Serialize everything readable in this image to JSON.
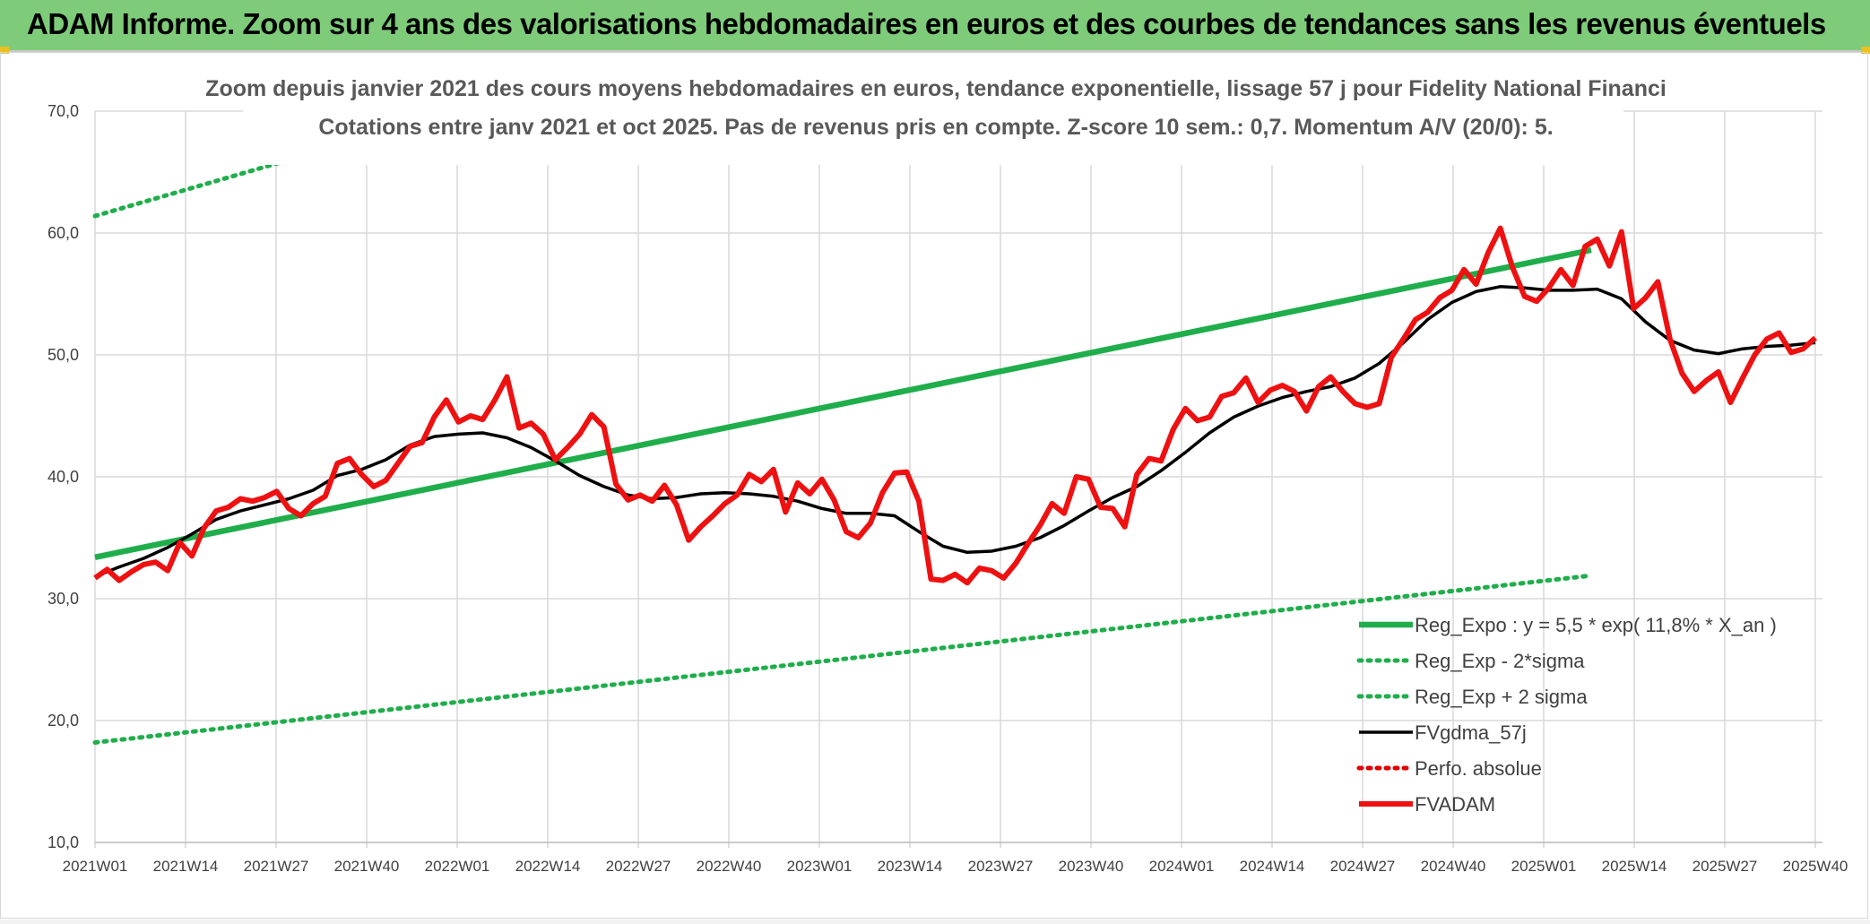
{
  "header": {
    "title": "ADAM Informe. Zoom sur 4 ans des valorisations hebdomadaires en euros et des courbes de tendances sans les revenus éventuels"
  },
  "chart_data": {
    "type": "line",
    "title_line1": "Zoom depuis janvier 2021 des cours moyens hebdomadaires en euros, tendance exponentielle, lissage 57 j pour Fidelity National Financi",
    "title_line2": "Cotations entre janv 2021 et oct 2025. Pas de revenus pris en compte. Z-score 10 sem.: 0,7. Momentum A/V (20/0): 5.",
    "ylim": [
      10,
      70
    ],
    "yticks": [
      "10,0",
      "20,0",
      "30,0",
      "40,0",
      "50,0",
      "60,0",
      "70,0"
    ],
    "ytick_values": [
      10,
      20,
      30,
      40,
      50,
      60,
      70
    ],
    "xticks": [
      "2021W01",
      "2021W14",
      "2021W27",
      "2021W40",
      "2022W01",
      "2022W14",
      "2022W27",
      "2022W40",
      "2023W01",
      "2023W14",
      "2023W27",
      "2023W40",
      "2024W01",
      "2024W14",
      "2024W27",
      "2024W40",
      "2025W01",
      "2025W14",
      "2025W27",
      "2025W40"
    ],
    "week_range": [
      0,
      247
    ],
    "grid": true,
    "legend_position": "bottom-right",
    "series": [
      {
        "name": "Reg_Expo : y = 5,5 * exp( 11,8% *  X_an )",
        "color": "#1fae4b",
        "style": "solid-thick",
        "points": [
          [
            0,
            33.4
          ],
          [
            247,
            58.6
          ]
        ]
      },
      {
        "name": "Reg_Exp - 2*sigma",
        "color": "#1fae4b",
        "style": "dotted",
        "points": [
          [
            0,
            18.2
          ],
          [
            247,
            31.9
          ]
        ]
      },
      {
        "name": "Reg_Exp + 2 sigma",
        "color": "#1fae4b",
        "style": "dotted",
        "points": [
          [
            0,
            61.4
          ],
          [
            39,
            67.0
          ],
          [
            70,
            70.0
          ],
          [
            247,
            70.0
          ]
        ]
      },
      {
        "name": "FVgdma_57j",
        "color": "#000000",
        "style": "solid",
        "points": [
          [
            0,
            31.8
          ],
          [
            4,
            32.6
          ],
          [
            8,
            33.3
          ],
          [
            12,
            34.2
          ],
          [
            16,
            35.3
          ],
          [
            20,
            36.5
          ],
          [
            24,
            37.2
          ],
          [
            28,
            37.7
          ],
          [
            32,
            38.2
          ],
          [
            36,
            38.9
          ],
          [
            40,
            40.1
          ],
          [
            44,
            40.6
          ],
          [
            48,
            41.4
          ],
          [
            52,
            42.6
          ],
          [
            56,
            43.3
          ],
          [
            60,
            43.5
          ],
          [
            64,
            43.6
          ],
          [
            68,
            43.2
          ],
          [
            72,
            42.4
          ],
          [
            76,
            41.3
          ],
          [
            80,
            40.1
          ],
          [
            84,
            39.2
          ],
          [
            88,
            38.5
          ],
          [
            92,
            38.2
          ],
          [
            96,
            38.3
          ],
          [
            100,
            38.6
          ],
          [
            104,
            38.7
          ],
          [
            108,
            38.6
          ],
          [
            112,
            38.4
          ],
          [
            116,
            38.0
          ],
          [
            120,
            37.4
          ],
          [
            124,
            37.0
          ],
          [
            128,
            37.0
          ],
          [
            132,
            36.8
          ],
          [
            136,
            35.5
          ],
          [
            140,
            34.3
          ],
          [
            144,
            33.8
          ],
          [
            148,
            33.9
          ],
          [
            152,
            34.3
          ],
          [
            156,
            35.0
          ],
          [
            160,
            36.0
          ],
          [
            164,
            37.2
          ],
          [
            168,
            38.3
          ],
          [
            172,
            39.2
          ],
          [
            176,
            40.5
          ],
          [
            180,
            42.0
          ],
          [
            184,
            43.6
          ],
          [
            188,
            44.9
          ],
          [
            192,
            45.8
          ],
          [
            196,
            46.5
          ],
          [
            200,
            47.0
          ],
          [
            204,
            47.4
          ],
          [
            208,
            48.1
          ],
          [
            212,
            49.3
          ],
          [
            216,
            51.0
          ],
          [
            220,
            52.9
          ],
          [
            224,
            54.3
          ],
          [
            228,
            55.2
          ],
          [
            232,
            55.6
          ],
          [
            236,
            55.5
          ],
          [
            240,
            55.3
          ],
          [
            244,
            55.3
          ],
          [
            248,
            55.4
          ],
          [
            252,
            54.6
          ],
          [
            256,
            52.7
          ],
          [
            260,
            51.2
          ],
          [
            264,
            50.4
          ],
          [
            268,
            50.1
          ],
          [
            272,
            50.5
          ],
          [
            276,
            50.7
          ],
          [
            280,
            50.8
          ],
          [
            284,
            51.0
          ]
        ]
      },
      {
        "name": "Perfo. absolue",
        "color": "#e00000",
        "style": "dotted",
        "points": []
      },
      {
        "name": "FVADAM",
        "color": "#ee1111",
        "style": "solid-thick",
        "points": [
          [
            0,
            31.7
          ],
          [
            2,
            32.4
          ],
          [
            4,
            31.5
          ],
          [
            6,
            32.2
          ],
          [
            8,
            32.8
          ],
          [
            10,
            33.0
          ],
          [
            12,
            32.3
          ],
          [
            14,
            34.6
          ],
          [
            16,
            33.5
          ],
          [
            18,
            35.8
          ],
          [
            20,
            37.2
          ],
          [
            22,
            37.5
          ],
          [
            24,
            38.2
          ],
          [
            26,
            38.0
          ],
          [
            28,
            38.3
          ],
          [
            30,
            38.8
          ],
          [
            32,
            37.4
          ],
          [
            34,
            36.8
          ],
          [
            36,
            37.8
          ],
          [
            38,
            38.4
          ],
          [
            40,
            41.1
          ],
          [
            42,
            41.5
          ],
          [
            44,
            40.2
          ],
          [
            46,
            39.2
          ],
          [
            48,
            39.7
          ],
          [
            50,
            41.1
          ],
          [
            52,
            42.5
          ],
          [
            54,
            42.8
          ],
          [
            56,
            44.9
          ],
          [
            58,
            46.3
          ],
          [
            60,
            44.5
          ],
          [
            62,
            45.0
          ],
          [
            64,
            44.7
          ],
          [
            66,
            46.3
          ],
          [
            68,
            48.2
          ],
          [
            70,
            44.0
          ],
          [
            72,
            44.4
          ],
          [
            74,
            43.5
          ],
          [
            76,
            41.4
          ],
          [
            78,
            42.4
          ],
          [
            80,
            43.5
          ],
          [
            82,
            45.1
          ],
          [
            84,
            44.1
          ],
          [
            86,
            39.4
          ],
          [
            88,
            38.1
          ],
          [
            90,
            38.5
          ],
          [
            92,
            38.0
          ],
          [
            94,
            39.3
          ],
          [
            96,
            37.7
          ],
          [
            98,
            34.8
          ],
          [
            100,
            35.9
          ],
          [
            102,
            36.8
          ],
          [
            104,
            37.8
          ],
          [
            106,
            38.5
          ],
          [
            108,
            40.2
          ],
          [
            110,
            39.6
          ],
          [
            112,
            40.6
          ],
          [
            114,
            37.1
          ],
          [
            116,
            39.5
          ],
          [
            118,
            38.6
          ],
          [
            120,
            39.8
          ],
          [
            122,
            38.1
          ],
          [
            124,
            35.5
          ],
          [
            126,
            35.0
          ],
          [
            128,
            36.2
          ],
          [
            130,
            38.7
          ],
          [
            132,
            40.3
          ],
          [
            134,
            40.4
          ],
          [
            136,
            38.0
          ],
          [
            138,
            31.6
          ],
          [
            140,
            31.5
          ],
          [
            142,
            32.0
          ],
          [
            144,
            31.3
          ],
          [
            146,
            32.5
          ],
          [
            148,
            32.3
          ],
          [
            150,
            31.7
          ],
          [
            152,
            32.9
          ],
          [
            154,
            34.5
          ],
          [
            156,
            36.0
          ],
          [
            158,
            37.8
          ],
          [
            160,
            37.0
          ],
          [
            162,
            40.0
          ],
          [
            164,
            39.8
          ],
          [
            166,
            37.5
          ],
          [
            168,
            37.4
          ],
          [
            170,
            35.9
          ],
          [
            172,
            40.2
          ],
          [
            174,
            41.5
          ],
          [
            176,
            41.3
          ],
          [
            178,
            43.9
          ],
          [
            180,
            45.6
          ],
          [
            182,
            44.6
          ],
          [
            184,
            44.9
          ],
          [
            186,
            46.6
          ],
          [
            188,
            46.9
          ],
          [
            190,
            48.1
          ],
          [
            192,
            46.1
          ],
          [
            194,
            47.1
          ],
          [
            196,
            47.5
          ],
          [
            198,
            47.0
          ],
          [
            200,
            45.4
          ],
          [
            202,
            47.4
          ],
          [
            204,
            48.2
          ],
          [
            206,
            47.0
          ],
          [
            208,
            46.0
          ],
          [
            210,
            45.7
          ],
          [
            212,
            46.0
          ],
          [
            214,
            49.8
          ],
          [
            216,
            51.3
          ],
          [
            218,
            52.9
          ],
          [
            220,
            53.5
          ],
          [
            222,
            54.7
          ],
          [
            224,
            55.3
          ],
          [
            226,
            57.0
          ],
          [
            228,
            55.8
          ],
          [
            230,
            58.4
          ],
          [
            232,
            60.4
          ],
          [
            234,
            57.2
          ],
          [
            236,
            54.8
          ],
          [
            238,
            54.4
          ],
          [
            240,
            55.5
          ],
          [
            242,
            57.0
          ],
          [
            244,
            55.7
          ],
          [
            246,
            58.9
          ],
          [
            248,
            59.5
          ],
          [
            250,
            57.3
          ],
          [
            252,
            60.1
          ],
          [
            254,
            53.8
          ],
          [
            256,
            54.7
          ],
          [
            258,
            56.0
          ],
          [
            260,
            51.3
          ],
          [
            262,
            48.5
          ],
          [
            264,
            47.0
          ],
          [
            266,
            47.9
          ],
          [
            268,
            48.6
          ],
          [
            270,
            46.1
          ],
          [
            272,
            48.1
          ],
          [
            274,
            50.0
          ],
          [
            276,
            51.3
          ],
          [
            278,
            51.8
          ],
          [
            280,
            50.2
          ],
          [
            282,
            50.5
          ],
          [
            284,
            51.4
          ]
        ]
      }
    ]
  }
}
